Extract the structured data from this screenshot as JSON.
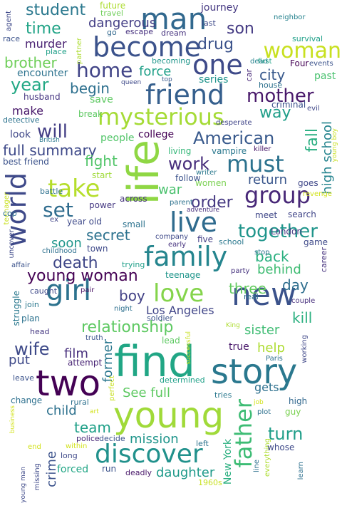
{
  "words": [
    {
      "text": "man",
      "color": "#31688e"
    },
    {
      "text": "become",
      "color": "#3b528b"
    },
    {
      "text": "one",
      "color": "#3e4a89"
    },
    {
      "text": "woman",
      "color": "#c8e020"
    },
    {
      "text": "home",
      "color": "#414487"
    },
    {
      "text": "friend",
      "color": "#355f8d"
    },
    {
      "text": "mysterious",
      "color": "#a5db36"
    },
    {
      "text": "life",
      "color": "#8fd744"
    },
    {
      "text": "world",
      "color": "#3e4989"
    },
    {
      "text": "will",
      "color": "#433e85"
    },
    {
      "text": "American",
      "color": "#38598c"
    },
    {
      "text": "must",
      "color": "#2c728e"
    },
    {
      "text": "take",
      "color": "#b5de2b"
    },
    {
      "text": "group",
      "color": "#482878"
    },
    {
      "text": "set",
      "color": "#2f6c8e"
    },
    {
      "text": "live",
      "color": "#2f6b8e"
    },
    {
      "text": "family",
      "color": "#25858e"
    },
    {
      "text": "together",
      "color": "#1f958b"
    },
    {
      "text": "love",
      "color": "#84d44b"
    },
    {
      "text": "girl",
      "color": "#2c728e"
    },
    {
      "text": "young woman",
      "color": "#440154"
    },
    {
      "text": "death",
      "color": "#3f4788"
    },
    {
      "text": "new",
      "color": "#3b528b"
    },
    {
      "text": "relationship",
      "color": "#5ec962"
    },
    {
      "text": "find",
      "color": "#21a685"
    },
    {
      "text": "story",
      "color": "#2a788e"
    },
    {
      "text": "two",
      "color": "#440154"
    },
    {
      "text": "young",
      "color": "#a0da39"
    },
    {
      "text": "discover",
      "color": "#21918c"
    },
    {
      "text": "father",
      "color": "#3dbc74"
    },
    {
      "text": "student",
      "color": "#2a788e"
    },
    {
      "text": "time",
      "color": "#20a386"
    },
    {
      "text": "dangerous",
      "color": "#433e85"
    },
    {
      "text": "son",
      "color": "#443a83"
    },
    {
      "text": "drug",
      "color": "#3b528b"
    },
    {
      "text": "murder",
      "color": "#482071"
    },
    {
      "text": "brother",
      "color": "#6ece58"
    },
    {
      "text": "year",
      "color": "#22a884"
    },
    {
      "text": "begin",
      "color": "#2d708e"
    },
    {
      "text": "force",
      "color": "#1fa088"
    },
    {
      "text": "city",
      "color": "#38598c"
    },
    {
      "text": "mother",
      "color": "#48186a"
    },
    {
      "text": "way",
      "color": "#1f9e89"
    },
    {
      "text": "fall",
      "color": "#28ae80"
    },
    {
      "text": "high school",
      "color": "#25848e"
    },
    {
      "text": "full summary",
      "color": "#3e4989"
    },
    {
      "text": "work",
      "color": "#472d7b"
    },
    {
      "text": "fight",
      "color": "#52c569"
    },
    {
      "text": "return",
      "color": "#39568c"
    },
    {
      "text": "order",
      "color": "#453882"
    },
    {
      "text": "war",
      "color": "#4ac16d"
    },
    {
      "text": "secret",
      "color": "#2c728e"
    },
    {
      "text": "soon",
      "color": "#1f968b"
    },
    {
      "text": "back",
      "color": "#29af7f"
    },
    {
      "text": "behind",
      "color": "#3fbc73"
    },
    {
      "text": "three",
      "color": "#63cb5f"
    },
    {
      "text": "day",
      "color": "#2e6e8e"
    },
    {
      "text": "boy",
      "color": "#424186"
    },
    {
      "text": "Los Angeles",
      "color": "#404588"
    },
    {
      "text": "kill",
      "color": "#2ab07f"
    },
    {
      "text": "sister",
      "color": "#3fbc73"
    },
    {
      "text": "wife",
      "color": "#3e4a89"
    },
    {
      "text": "film",
      "color": "#472f7d"
    },
    {
      "text": "former",
      "color": "#2a778e"
    },
    {
      "text": "help",
      "color": "#addc30"
    },
    {
      "text": "true",
      "color": "#48186a"
    },
    {
      "text": "put",
      "color": "#3e4989"
    },
    {
      "text": "See full",
      "color": "#5ec962"
    },
    {
      "text": "gets",
      "color": "#2d708e"
    },
    {
      "text": "child",
      "color": "#2d718e"
    },
    {
      "text": "team",
      "color": "#1fa088"
    },
    {
      "text": "mission",
      "color": "#1f958b"
    },
    {
      "text": "turn",
      "color": "#1f9e89"
    },
    {
      "text": "daughter",
      "color": "#1f9a8a"
    },
    {
      "text": "New York",
      "color": "#29af7f"
    },
    {
      "text": "crime",
      "color": "#3b528b"
    },
    {
      "text": "forced",
      "color": "#21a685"
    },
    {
      "text": "journey",
      "color": "#453882"
    },
    {
      "text": "future",
      "color": "#addc30"
    },
    {
      "text": "travel",
      "color": "#6ece58"
    },
    {
      "text": "neighbor",
      "color": "#26828e"
    },
    {
      "text": "agent",
      "color": "#3e4989"
    },
    {
      "text": "race",
      "color": "#3b528b"
    },
    {
      "text": "go",
      "color": "#31688e"
    },
    {
      "text": "escape",
      "color": "#46307e"
    },
    {
      "text": "dream",
      "color": "#46327e"
    },
    {
      "text": "last",
      "color": "#3e4989"
    },
    {
      "text": "partner",
      "color": "#addc30"
    },
    {
      "text": "survival",
      "color": "#1fa088"
    },
    {
      "text": "first",
      "color": "#20a386"
    },
    {
      "text": "place",
      "color": "#1f9f88"
    },
    {
      "text": "becoming",
      "color": "#1f968b"
    },
    {
      "text": "dead",
      "color": "#26828e"
    },
    {
      "text": "Four",
      "color": "#440154"
    },
    {
      "text": "events",
      "color": "#3b528b"
    },
    {
      "text": "encounter",
      "color": "#2c728e"
    },
    {
      "text": "series",
      "color": "#1f948c"
    },
    {
      "text": "car",
      "color": "#482878"
    },
    {
      "text": "house",
      "color": "#2d718e"
    },
    {
      "text": "past",
      "color": "#48c16e"
    },
    {
      "text": "queen",
      "color": "#3e4989"
    },
    {
      "text": "top",
      "color": "#38598c"
    },
    {
      "text": "husband",
      "color": "#453581"
    },
    {
      "text": "save",
      "color": "#5ec962"
    },
    {
      "text": "criminal",
      "color": "#3b528b"
    },
    {
      "text": "evil",
      "color": "#3f4788"
    },
    {
      "text": "detective",
      "color": "#2c728e"
    },
    {
      "text": "break",
      "color": "#5ec962"
    },
    {
      "text": "desperate",
      "color": "#404588"
    },
    {
      "text": "make",
      "color": "#48186a"
    },
    {
      "text": "young boy",
      "color": "#c8e020"
    },
    {
      "text": "look",
      "color": "#3f4788"
    },
    {
      "text": "British",
      "color": "#2a788e"
    },
    {
      "text": "people",
      "color": "#52c569"
    },
    {
      "text": "college",
      "color": "#440154"
    },
    {
      "text": "killer",
      "color": "#48186a"
    },
    {
      "text": "living",
      "color": "#35b779"
    },
    {
      "text": "vampire",
      "color": "#2a788e"
    },
    {
      "text": "best friend",
      "color": "#3b528b"
    },
    {
      "text": "writer",
      "color": "#2a788e"
    },
    {
      "text": "goes",
      "color": "#3f4788"
    },
    {
      "text": "start",
      "color": "#a0da39"
    },
    {
      "text": "follow",
      "color": "#3b528b"
    },
    {
      "text": "women",
      "color": "#7ad151"
    },
    {
      "text": "battle",
      "color": "#2d708e"
    },
    {
      "text": "revenge",
      "color": "#d2e21b"
    },
    {
      "text": "teenager",
      "color": "#c8e020"
    },
    {
      "text": "parent",
      "color": "#2d718e"
    },
    {
      "text": "across",
      "color": "#46337e"
    },
    {
      "text": "power",
      "color": "#453882"
    },
    {
      "text": "cop",
      "color": "#2d708e"
    },
    {
      "text": "adventure",
      "color": "#472f7d"
    },
    {
      "text": "meet",
      "color": "#3f4788"
    },
    {
      "text": "search",
      "color": "#404588"
    },
    {
      "text": "ex",
      "color": "#404588"
    },
    {
      "text": "year old",
      "color": "#3e4989"
    },
    {
      "text": "small",
      "color": "#2c728e"
    },
    {
      "text": "London",
      "color": "#453882"
    },
    {
      "text": "company",
      "color": "#3e4989"
    },
    {
      "text": "five",
      "color": "#433e85"
    },
    {
      "text": "game",
      "color": "#3e4989"
    },
    {
      "text": "uncover",
      "color": "#3e4989"
    },
    {
      "text": "childhood",
      "color": "#2d708e"
    },
    {
      "text": "town",
      "color": "#3e4989"
    },
    {
      "text": "early",
      "color": "#46327e"
    },
    {
      "text": "school",
      "color": "#2a788e"
    },
    {
      "text": "trying",
      "color": "#1f9e89"
    },
    {
      "text": "stop",
      "color": "#2c728e"
    },
    {
      "text": "career",
      "color": "#46327e"
    },
    {
      "text": "party",
      "color": "#46327e"
    },
    {
      "text": "affair",
      "color": "#3b528b"
    },
    {
      "text": "teenage",
      "color": "#1f958b"
    },
    {
      "text": "struggle",
      "color": "#2a788e"
    },
    {
      "text": "caught",
      "color": "#3e4989"
    },
    {
      "text": "pair",
      "color": "#471063"
    },
    {
      "text": "real",
      "color": "#2d708e"
    },
    {
      "text": "couple",
      "color": "#472f7d"
    },
    {
      "text": "join",
      "color": "#2a788e"
    },
    {
      "text": "night",
      "color": "#2d708e"
    },
    {
      "text": "soldier",
      "color": "#3b528b"
    },
    {
      "text": "plan",
      "color": "#2c728e"
    },
    {
      "text": "King",
      "color": "#addc30"
    },
    {
      "text": "head",
      "color": "#453882"
    },
    {
      "text": "truth",
      "color": "#3b528b"
    },
    {
      "text": "lead",
      "color": "#5ec962"
    },
    {
      "text": "successful",
      "color": "#c8e020"
    },
    {
      "text": "working",
      "color": "#3f4788"
    },
    {
      "text": "attempt",
      "color": "#482475"
    },
    {
      "text": "Paris",
      "color": "#2d708e"
    },
    {
      "text": "leave",
      "color": "#3b528b"
    },
    {
      "text": "determined",
      "color": "#1fa088"
    },
    {
      "text": "perfect",
      "color": "#c8e020"
    },
    {
      "text": "change",
      "color": "#2d708e"
    },
    {
      "text": "rural",
      "color": "#2d708e"
    },
    {
      "text": "tries",
      "color": "#2a788e"
    },
    {
      "text": "job",
      "color": "#d2e21b"
    },
    {
      "text": "high",
      "color": "#31688e"
    },
    {
      "text": "guy",
      "color": "#7ad151"
    },
    {
      "text": "plot",
      "color": "#2d708e"
    },
    {
      "text": "business",
      "color": "#d2e21b"
    },
    {
      "text": "art",
      "color": "#d2e21b"
    },
    {
      "text": "police",
      "color": "#482878"
    },
    {
      "text": "decide",
      "color": "#3b528b"
    },
    {
      "text": "everything",
      "color": "#addc30"
    },
    {
      "text": "end",
      "color": "#d2e21b"
    },
    {
      "text": "within",
      "color": "#d2e21b"
    },
    {
      "text": "left",
      "color": "#2c728e"
    },
    {
      "text": "whose",
      "color": "#3e4989"
    },
    {
      "text": "long",
      "color": "#3e4989"
    },
    {
      "text": "young man",
      "color": "#3e4989"
    },
    {
      "text": "missing",
      "color": "#3e4989"
    },
    {
      "text": "run",
      "color": "#3b528b"
    },
    {
      "text": "deadly",
      "color": "#48186a"
    },
    {
      "text": "line",
      "color": "#2d708e"
    },
    {
      "text": "learn",
      "color": "#2d708e"
    },
    {
      "text": "1960s",
      "color": "#c8e020"
    }
  ]
}
